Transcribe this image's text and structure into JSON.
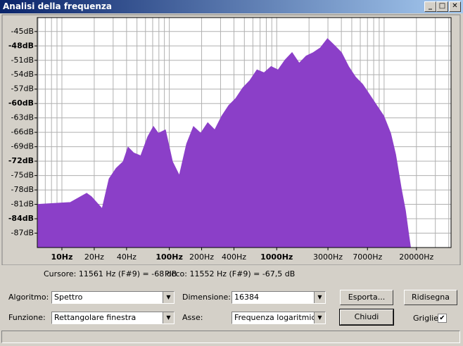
{
  "window": {
    "title": "Analisi della frequenza"
  },
  "chart_data": {
    "type": "area",
    "color": "#8b3fc8",
    "xscale": "log",
    "grid": true,
    "x": [
      6,
      12,
      17,
      18.8,
      23.7,
      27.5,
      32,
      37.2,
      41.3,
      46.6,
      54.2,
      63.1,
      71.2,
      79,
      92,
      107,
      124,
      145,
      168,
      196,
      228,
      265,
      308,
      358,
      417,
      485,
      563,
      655,
      762,
      887,
      1030,
      1200,
      1390,
      1620,
      1880,
      2190,
      2550,
      2970,
      3450,
      4010,
      4670,
      5420,
      6310,
      7340,
      8530,
      9930,
      11500,
      12800,
      14500,
      15800,
      16800,
      17600
    ],
    "values": [
      -81,
      -80.6,
      -78.7,
      -79.4,
      -81.9,
      -75.7,
      -73.5,
      -72.1,
      -69.1,
      -70.3,
      -70.9,
      -66.9,
      -64.8,
      -66.2,
      -65.5,
      -72.1,
      -75,
      -68.4,
      -64.8,
      -66.2,
      -64,
      -65.5,
      -62.6,
      -60.4,
      -58.9,
      -56.7,
      -55.2,
      -53,
      -53.6,
      -52.3,
      -53,
      -50.9,
      -49.4,
      -51.6,
      -50.1,
      -49.4,
      -48.4,
      -46.5,
      -47.9,
      -49.4,
      -52.3,
      -54.5,
      -56,
      -58.2,
      -60.4,
      -62.6,
      -66.2,
      -70.6,
      -77.9,
      -82.3,
      -86.7,
      -89.9
    ],
    "xlim": [
      5.9,
      42000
    ],
    "ylim": [
      -90,
      -42.1
    ],
    "xticks": [
      {
        "value": 10,
        "label": "10Hz",
        "bold": true
      },
      {
        "value": 20,
        "label": "20Hz"
      },
      {
        "value": 40,
        "label": "40Hz"
      },
      {
        "value": 100,
        "label": "100Hz",
        "bold": true
      },
      {
        "value": 200,
        "label": "200Hz"
      },
      {
        "value": 400,
        "label": "400Hz"
      },
      {
        "value": 1000,
        "label": "1000Hz",
        "bold": true
      },
      {
        "value": 3000,
        "label": "3000Hz"
      },
      {
        "value": 7000,
        "label": "7000Hz"
      },
      {
        "value": 20000,
        "label": "20000Hz"
      }
    ],
    "x_minor_ticks": [
      6,
      7,
      8,
      9,
      30,
      50,
      60,
      70,
      80,
      90,
      300,
      500,
      600,
      700,
      800,
      900,
      2000,
      4000,
      5000,
      6000,
      8000,
      9000,
      10000,
      30000,
      40000
    ],
    "yticks": [
      {
        "value": -45,
        "label": "-45dB"
      },
      {
        "value": -48,
        "label": "-48dB",
        "bold": true
      },
      {
        "value": -51,
        "label": "-51dB"
      },
      {
        "value": -54,
        "label": "-54dB"
      },
      {
        "value": -57,
        "label": "-57dB"
      },
      {
        "value": -60,
        "label": "-60dB",
        "bold": true
      },
      {
        "value": -63,
        "label": "-63dB"
      },
      {
        "value": -66,
        "label": "-66dB"
      },
      {
        "value": -69,
        "label": "-69dB"
      },
      {
        "value": -72,
        "label": "-72dB",
        "bold": true
      },
      {
        "value": -75,
        "label": "-75dB"
      },
      {
        "value": -78,
        "label": "-78dB"
      },
      {
        "value": -81,
        "label": "-81dB"
      },
      {
        "value": -84,
        "label": "-84dB",
        "bold": true
      },
      {
        "value": -87,
        "label": "-87dB"
      }
    ]
  },
  "status": {
    "cursor": "Cursore: 11561 Hz (F#9) = -68 dB",
    "peak": "Picco: 11552 Hz (F#9) = -67,5 dB"
  },
  "controls": {
    "algorithm_label": "Algoritmo:",
    "algorithm": "Spettro",
    "function_label": "Funzione:",
    "function": "Rettangolare finestra",
    "size_label": "Dimensione:",
    "size": "16384",
    "axis_label": "Asse:",
    "axis": "Frequenza logaritmica",
    "export": "Esporta...",
    "redraw": "Ridisegna",
    "close": "Chiudi",
    "grid_label": "Griglie"
  }
}
